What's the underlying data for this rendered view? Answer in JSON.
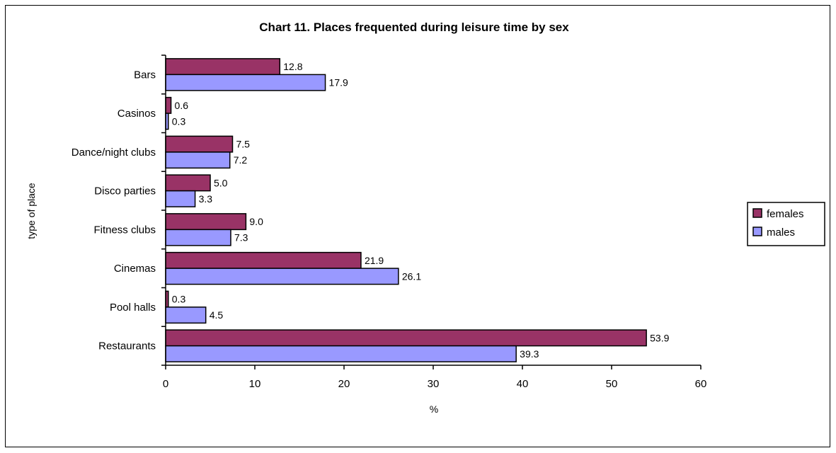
{
  "chart_data": {
    "type": "bar",
    "orientation": "horizontal",
    "title": "Chart 11.  Places frequented during leisure time by sex",
    "xlabel": "%",
    "ylabel": "type of place",
    "categories": [
      "Bars",
      "Casinos",
      "Dance/night clubs",
      "Disco parties",
      "Fitness clubs",
      "Cinemas",
      "Pool halls",
      "Restaurants"
    ],
    "series": [
      {
        "name": "females",
        "color": "#993366",
        "values": [
          12.8,
          0.6,
          7.5,
          5.0,
          9.0,
          21.9,
          0.3,
          53.9
        ]
      },
      {
        "name": "males",
        "color": "#9999FF",
        "values": [
          17.9,
          0.3,
          7.2,
          3.3,
          7.3,
          26.1,
          4.5,
          39.3
        ]
      }
    ],
    "xlim": [
      0,
      60
    ],
    "xticks": [
      0,
      10,
      20,
      30,
      40,
      50,
      60
    ],
    "grid": false,
    "legend_position": "right"
  }
}
